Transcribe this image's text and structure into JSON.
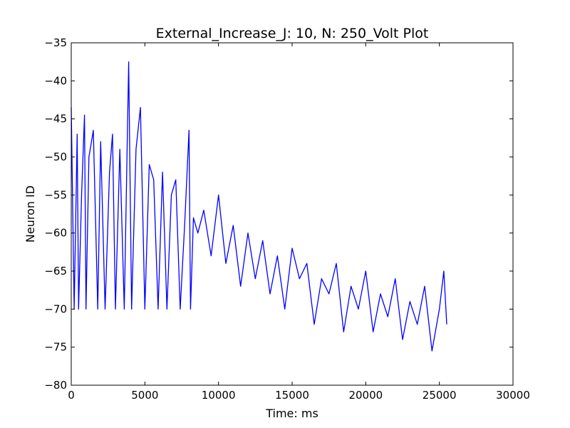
{
  "chart_data": {
    "type": "line",
    "title": "External_Increase_J: 10, N: 250_Volt Plot",
    "xlabel": "Time: ms",
    "ylabel": "Neuron ID",
    "xlim": [
      0,
      30000
    ],
    "ylim": [
      -80,
      -35
    ],
    "xticks": [
      "0",
      "5000",
      "10000",
      "15000",
      "20000",
      "25000",
      "30000"
    ],
    "yticks": [
      "−35",
      "−40",
      "−45",
      "−50",
      "−55",
      "−60",
      "−65",
      "−70",
      "−75",
      "−80"
    ],
    "grid": false,
    "legend": "none",
    "series": [
      {
        "color": "#0000ff",
        "x": [
          0,
          200,
          400,
          500,
          700,
          900,
          1000,
          1200,
          1500,
          1800,
          2000,
          2300,
          2600,
          2800,
          3000,
          3300,
          3600,
          3900,
          4100,
          4400,
          4700,
          5000,
          5300,
          5600,
          5900,
          6200,
          6500,
          6800,
          7100,
          7400,
          7700,
          8000,
          8100,
          8300,
          8600,
          9000,
          9500,
          10000,
          10500,
          11000,
          11500,
          12000,
          12500,
          13000,
          13500,
          14000,
          14500,
          15000,
          15500,
          16000,
          16500,
          17000,
          17500,
          18000,
          18500,
          19000,
          19500,
          20000,
          20500,
          21000,
          21500,
          22000,
          22500,
          23000,
          23500,
          24000,
          24500,
          25000,
          25300,
          25500
        ],
        "y": [
          -43.5,
          -70,
          -47,
          -70,
          -55,
          -44.5,
          -70,
          -50,
          -46.5,
          -70,
          -48,
          -70,
          -52,
          -47,
          -70,
          -49,
          -70,
          -37.5,
          -70,
          -49,
          -43.5,
          -70,
          -51,
          -53,
          -70,
          -52,
          -70,
          -55,
          -53,
          -70,
          -59,
          -46.5,
          -70,
          -58,
          -60,
          -57,
          -63,
          -55,
          -64,
          -59,
          -67,
          -60,
          -66,
          -61,
          -68,
          -63,
          -70,
          -62,
          -66,
          -64,
          -72,
          -66,
          -68,
          -64,
          -73,
          -67,
          -70,
          -65,
          -73,
          -68,
          -71,
          -66,
          -74,
          -69,
          -72,
          -67,
          -75.5,
          -70,
          -65,
          -72
        ]
      }
    ]
  }
}
